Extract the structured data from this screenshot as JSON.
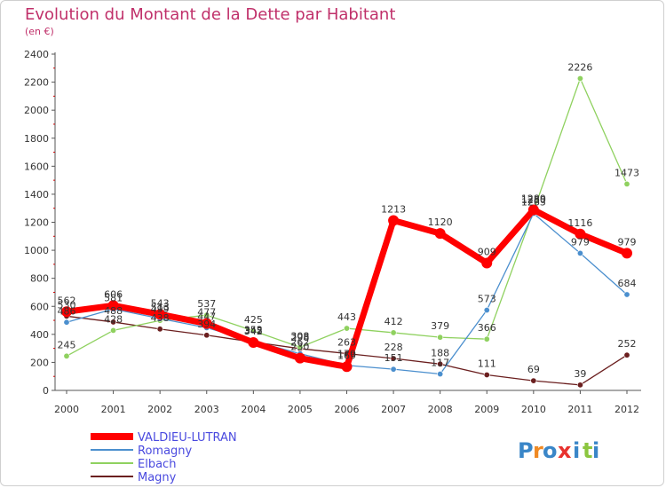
{
  "chart_data": {
    "type": "line",
    "title": "Evolution du Montant de la Dette par Habitant",
    "subtitle": "(en €)",
    "xlabel": "",
    "ylabel": "",
    "x": [
      "2000",
      "2001",
      "2002",
      "2003",
      "2004",
      "2005",
      "2006",
      "2007",
      "2008",
      "2009",
      "2010",
      "2011",
      "2012"
    ],
    "ylim": [
      0,
      2400
    ],
    "yticks": [
      0,
      200,
      400,
      600,
      800,
      1000,
      1200,
      1400,
      1600,
      1800,
      2000,
      2200,
      2400
    ],
    "grid": false,
    "legend_position": "bottom-left",
    "series": [
      {
        "name": "VALDIEU-LUTRAN",
        "color": "#ff0000",
        "values": [
          562,
          606,
          543,
          477,
          342,
          230,
          169,
          1213,
          1120,
          909,
          1289,
          1116,
          979
        ]
      },
      {
        "name": "Romagny",
        "color": "#4b8fce",
        "values": [
          486,
          581,
          513,
          447,
          352,
          262,
          179,
          151,
          117,
          573,
          1263,
          979,
          684
        ]
      },
      {
        "name": "Elbach",
        "color": "#8fd15f",
        "values": [
          245,
          428,
          499,
          537,
          425,
          308,
          443,
          412,
          379,
          366,
          1280,
          2226,
          1473
        ]
      },
      {
        "name": "Magny",
        "color": "#6b1f1f",
        "values": [
          530,
          488,
          438,
          394,
          345,
          298,
          263,
          228,
          188,
          111,
          69,
          39,
          252
        ]
      }
    ]
  },
  "logo": {
    "chars": [
      "P",
      "r",
      "o",
      "x",
      "i",
      "t",
      "i"
    ],
    "colors": [
      "#3a86c8",
      "#f08a24",
      "#3a86c8",
      "#e8322e",
      "#3a86c8",
      "#8cc63f",
      "#3a86c8"
    ]
  }
}
